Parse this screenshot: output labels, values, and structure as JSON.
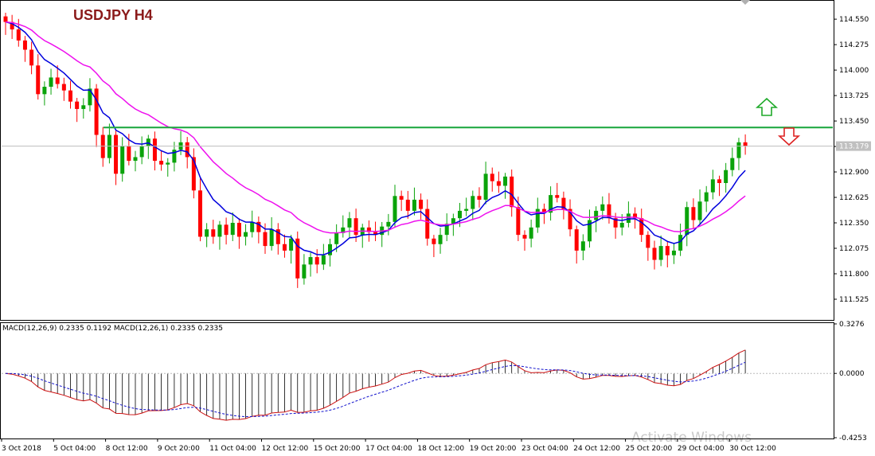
{
  "chart_data": {
    "type": "candlestick",
    "title": "USDJPY H4",
    "price_axis": {
      "ylim": [
        111.31,
        114.74
      ],
      "ticks": [
        "114.550",
        "114.275",
        "114.000",
        "113.725",
        "113.450",
        "113.175",
        "112.900",
        "112.625",
        "112.350",
        "112.075",
        "111.800",
        "111.525"
      ],
      "current_price": "113.179"
    },
    "time_axis": {
      "labels": [
        "3 Oct 2018",
        "5 Oct 04:00",
        "8 Oct 12:00",
        "9 Oct 20:00",
        "11 Oct 04:00",
        "12 Oct 12:00",
        "15 Oct 20:00",
        "17 Oct 04:00",
        "18 Oct 12:00",
        "19 Oct 20:00",
        "23 Oct 04:00",
        "24 Oct 12:00",
        "25 Oct 20:00",
        "29 Oct 04:00",
        "30 Oct 12:00"
      ]
    },
    "closes": [
      114.52,
      114.44,
      114.32,
      114.22,
      114.05,
      113.74,
      113.82,
      113.92,
      113.85,
      113.78,
      113.66,
      113.58,
      113.62,
      113.8,
      113.3,
      113.05,
      113.3,
      112.88,
      113.18,
      113.02,
      113.06,
      113.18,
      113.26,
      113.02,
      112.98,
      113.0,
      113.14,
      113.22,
      113.06,
      112.7,
      112.2,
      112.28,
      112.2,
      112.33,
      112.22,
      112.35,
      112.2,
      112.25,
      112.36,
      112.25,
      112.1,
      112.28,
      112.12,
      112.05,
      112.18,
      111.75,
      111.9,
      111.98,
      111.9,
      112.0,
      112.12,
      112.24,
      112.3,
      112.4,
      112.22,
      112.3,
      112.25,
      112.22,
      112.31,
      112.36,
      112.64,
      112.6,
      112.48,
      112.6,
      112.5,
      112.18,
      112.12,
      112.22,
      112.34,
      112.4,
      112.48,
      112.5,
      112.64,
      112.6,
      112.88,
      112.8,
      112.75,
      112.85,
      112.52,
      112.22,
      112.18,
      112.3,
      112.5,
      112.46,
      112.65,
      112.62,
      112.5,
      112.28,
      112.05,
      112.15,
      112.38,
      112.48,
      112.55,
      112.4,
      112.3,
      112.35,
      112.45,
      112.4,
      112.22,
      112.08,
      111.95,
      112.1,
      112.0,
      112.05,
      112.22,
      112.52,
      112.38,
      112.58,
      112.68,
      112.82,
      112.78,
      112.92,
      113.05,
      113.22,
      113.18
    ]
  },
  "indicator": {
    "label": "MACD(12,26,9) 0.2335 0.1192 MACD(12,26,1) 0.2335 0.2335",
    "ylim": [
      -0.4253,
      0.3276
    ],
    "ticks": [
      "0.3276",
      "0.0000",
      "-0.4253"
    ]
  },
  "colors": {
    "bull": "#0aa30a",
    "bear": "#ff0000",
    "ma_fast": "#0000dd",
    "ma_slow": "#ee11ee",
    "resistance": "#22aa44",
    "up_arrow": "#1faa2a",
    "down_arrow": "#dd2222",
    "macd_line": "#cc1111",
    "signal_line": "#1111cc"
  },
  "icons": {
    "up": "up-arrow-icon",
    "down": "down-arrow-icon"
  },
  "watermark": "Activate Windows"
}
